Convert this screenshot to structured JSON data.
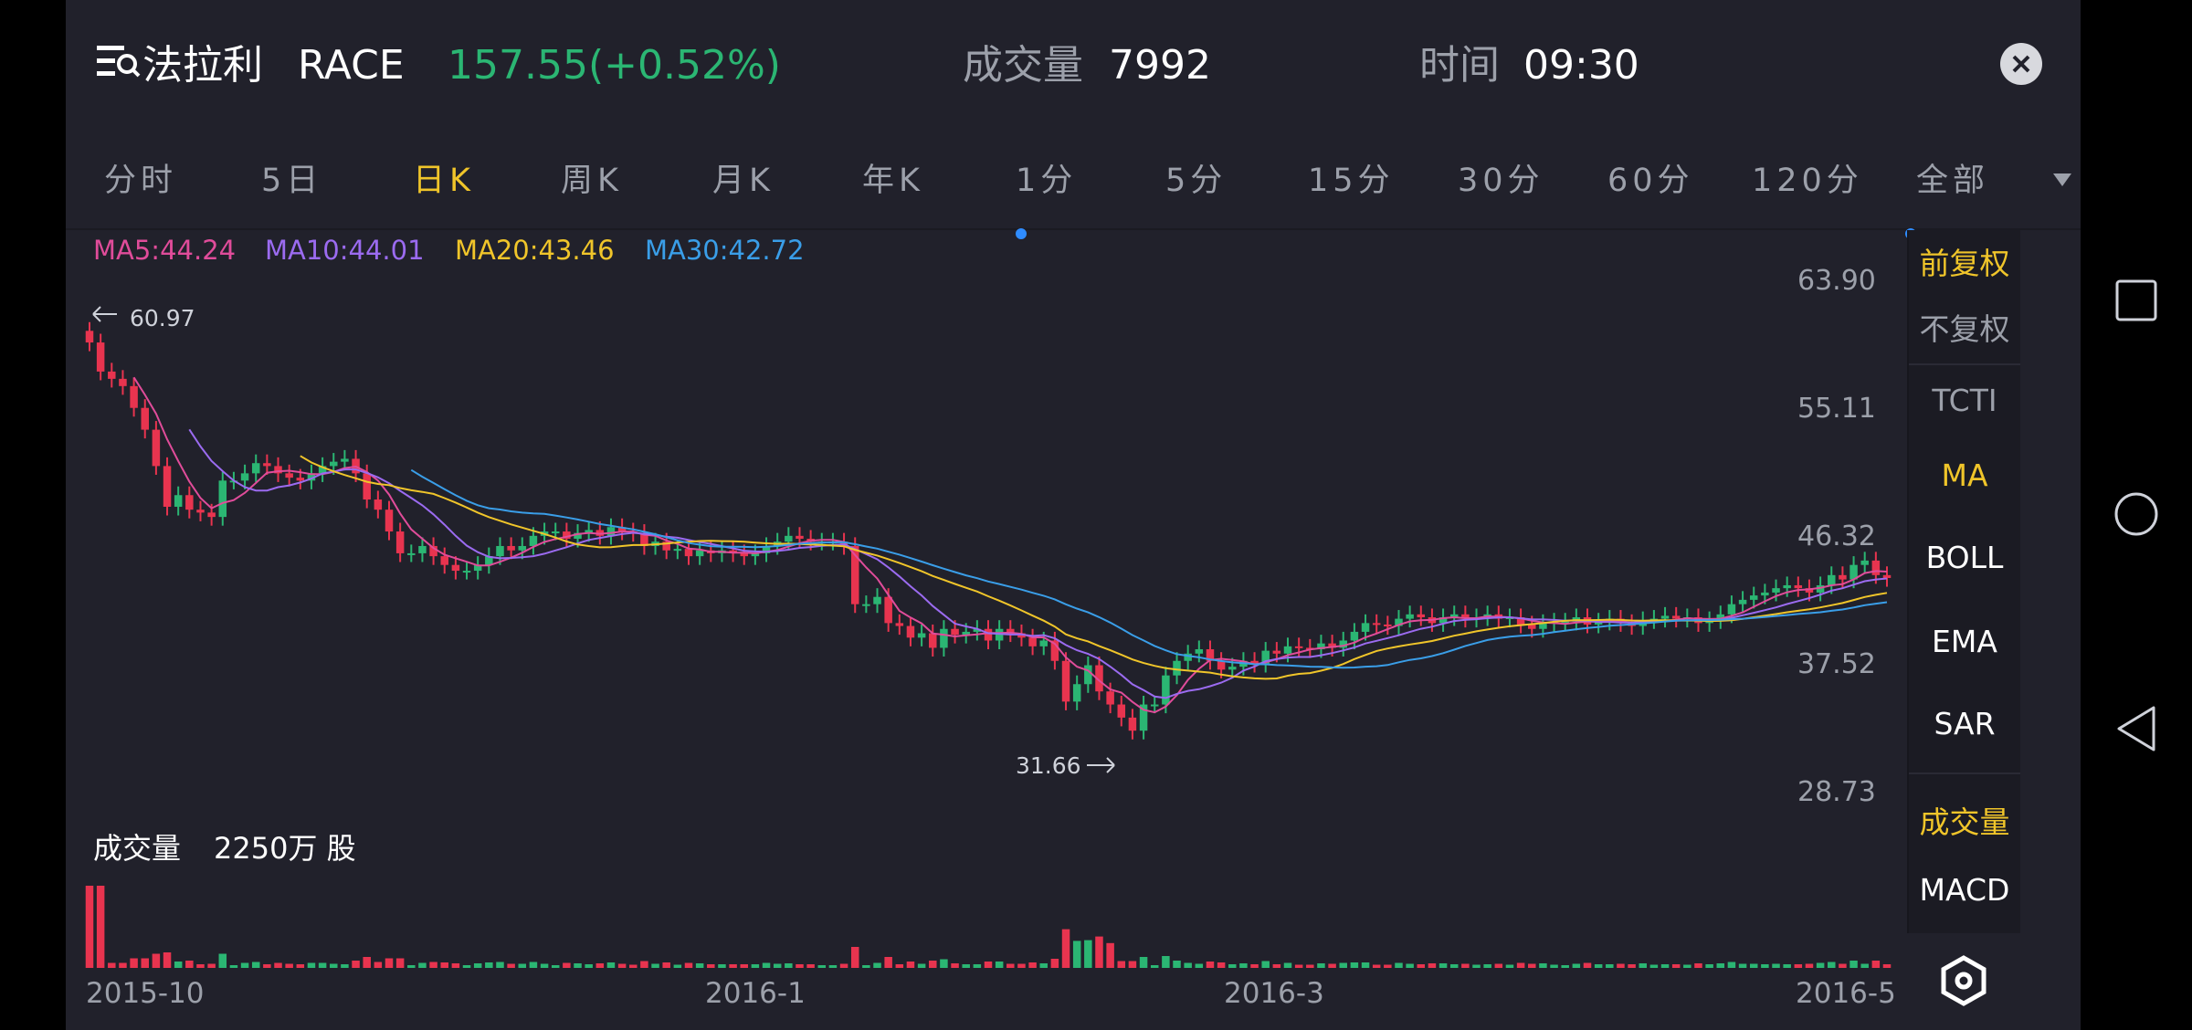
{
  "header": {
    "stock_name": "法拉利",
    "symbol": "RACE",
    "price": "157.55(+0.52%)",
    "volume_label": "成交量",
    "volume_value": "7992",
    "time_label": "时间",
    "time_value": "09:30"
  },
  "tabs": [
    "分时",
    "5日",
    "日K",
    "周K",
    "月K",
    "年K",
    "1分",
    "5分",
    "15分",
    "30分",
    "60分",
    "120分",
    "全部"
  ],
  "active_tab": "日K",
  "ma_legend": {
    "ma5": "MA5:44.24",
    "ma10": "MA10:44.01",
    "ma20": "MA20:43.46",
    "ma30": "MA30:42.72"
  },
  "price_labels": [
    "63.90",
    "55.11",
    "46.32",
    "37.52",
    "28.73"
  ],
  "marks": {
    "high": "60.97",
    "low": "31.66"
  },
  "volume_section": {
    "label": "成交量",
    "value": "2250万 股"
  },
  "date_labels": [
    "2015-10",
    "2016-1",
    "2016-3",
    "2016-5"
  ],
  "side_panel": {
    "adjust": [
      "前复权",
      "不复权"
    ],
    "indicators": [
      "TCTI",
      "MA",
      "BOLL",
      "EMA",
      "SAR"
    ],
    "sub_indicators": [
      "成交量",
      "MACD"
    ]
  },
  "colors": {
    "up": "#2bb673",
    "down": "#e8344f",
    "accent": "#f0c52a",
    "ma5": "#e04c9a",
    "ma10": "#9b6bf0",
    "ma20": "#f0c52a",
    "ma30": "#3a9ee8",
    "background": "#21212b"
  },
  "chart_data": {
    "type": "candlestick",
    "price_axis": [
      28.73,
      63.9
    ],
    "x_ticks": [
      "2015-10",
      "2016-1",
      "2016-3",
      "2016-5"
    ],
    "close": [
      59.5,
      57.5,
      57,
      56.5,
      55,
      53.5,
      51,
      48.2,
      49,
      48,
      47.8,
      47.5,
      50,
      50,
      50.5,
      51.2,
      51,
      50.5,
      50.2,
      50,
      50.5,
      51,
      51.3,
      51.5,
      50.5,
      48.7,
      48,
      46.5,
      45,
      45,
      45.5,
      44.8,
      44.2,
      43.8,
      43.8,
      44.2,
      44.8,
      45.5,
      45.2,
      45.5,
      46.2,
      46.5,
      46.5,
      46,
      46.4,
      46.6,
      46.2,
      46.8,
      46.5,
      46.4,
      45.5,
      45.8,
      45.2,
      45.3,
      44.8,
      45.2,
      45,
      45.2,
      45,
      44.8,
      45,
      45.5,
      45.8,
      46.2,
      46,
      45.8,
      45.8,
      45.8,
      45.5,
      41.5,
      41.5,
      42,
      40.2,
      40,
      39.2,
      39.5,
      38.5,
      39.8,
      39.4,
      39.6,
      39.8,
      39,
      39.8,
      39.5,
      39.2,
      38.6,
      39,
      37.6,
      34.8,
      36,
      37.3,
      35.5,
      34.6,
      33.7,
      32.8,
      34.6,
      34.6,
      36.6,
      37.6,
      38.1,
      38.4,
      37.6,
      37,
      37.2,
      37.6,
      37.4,
      38.3,
      38.1,
      38.6,
      38.5,
      38.4,
      38.8,
      38.5,
      39,
      39.6,
      40.2,
      40.1,
      40,
      40.5,
      40.8,
      40.6,
      40.2,
      40.6,
      40.8,
      40.5,
      40.6,
      40.8,
      40.5,
      40.6,
      40.1,
      39.8,
      40.2,
      40.3,
      40.3,
      40.6,
      40.1,
      40.3,
      40.5,
      40.2,
      40,
      40.4,
      40.5,
      40.7,
      40.5,
      40.6,
      40.2,
      40.4,
      40.8,
      41.5,
      41.8,
      42.1,
      42.3,
      42.6,
      42.8,
      42.6,
      42.3,
      42.8,
      43.5,
      43.2,
      44.2,
      44.5,
      43.5,
      43.3
    ],
    "ma_series": [
      "MA5",
      "MA10",
      "MA20",
      "MA30"
    ],
    "annotations": [
      {
        "label": "60.97",
        "type": "high"
      },
      {
        "label": "31.66",
        "type": "low"
      }
    ]
  }
}
